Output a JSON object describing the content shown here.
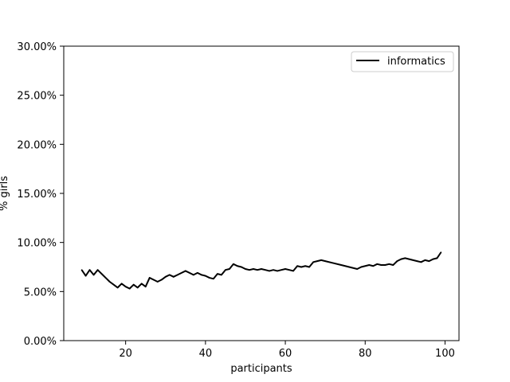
{
  "chart_data": {
    "type": "line",
    "xlabel": "participants",
    "ylabel": "% girls",
    "xlim": [
      4.5,
      103.5
    ],
    "ylim": [
      0,
      0.3
    ],
    "x_ticks": [
      20,
      40,
      60,
      80,
      100
    ],
    "x_tick_labels": [
      "20",
      "40",
      "60",
      "80",
      "100"
    ],
    "y_ticks": [
      0,
      0.05,
      0.1,
      0.15,
      0.2,
      0.25,
      0.3
    ],
    "y_tick_labels": [
      "0.00%",
      "5.00%",
      "10.00%",
      "15.00%",
      "20.00%",
      "25.00%",
      "30.00%"
    ],
    "grid": false,
    "legend_position": "top-right",
    "series": [
      {
        "name": "informatics",
        "color": "#000000",
        "x": [
          9,
          10,
          11,
          12,
          13,
          14,
          15,
          16,
          17,
          18,
          19,
          20,
          21,
          22,
          23,
          24,
          25,
          26,
          27,
          28,
          29,
          30,
          31,
          32,
          33,
          34,
          35,
          36,
          37,
          38,
          39,
          40,
          41,
          42,
          43,
          44,
          45,
          46,
          47,
          48,
          49,
          50,
          51,
          52,
          53,
          54,
          55,
          56,
          57,
          58,
          59,
          60,
          61,
          62,
          63,
          64,
          65,
          66,
          67,
          68,
          69,
          70,
          72,
          74,
          76,
          78,
          79,
          80,
          81,
          82,
          83,
          84,
          85,
          86,
          87,
          88,
          89,
          90,
          91,
          92,
          93,
          94,
          95,
          96,
          97,
          98,
          99
        ],
        "values": [
          0.072,
          0.066,
          0.072,
          0.067,
          0.072,
          0.068,
          0.064,
          0.06,
          0.057,
          0.054,
          0.058,
          0.055,
          0.053,
          0.057,
          0.054,
          0.058,
          0.055,
          0.064,
          0.062,
          0.06,
          0.062,
          0.065,
          0.067,
          0.065,
          0.067,
          0.069,
          0.071,
          0.069,
          0.067,
          0.069,
          0.067,
          0.066,
          0.064,
          0.063,
          0.068,
          0.067,
          0.072,
          0.073,
          0.078,
          0.076,
          0.075,
          0.073,
          0.072,
          0.073,
          0.072,
          0.073,
          0.072,
          0.071,
          0.072,
          0.071,
          0.072,
          0.073,
          0.072,
          0.071,
          0.076,
          0.075,
          0.076,
          0.075,
          0.08,
          0.081,
          0.082,
          0.081,
          0.079,
          0.077,
          0.075,
          0.073,
          0.075,
          0.076,
          0.077,
          0.076,
          0.078,
          0.077,
          0.077,
          0.078,
          0.077,
          0.081,
          0.083,
          0.084,
          0.083,
          0.082,
          0.081,
          0.08,
          0.082,
          0.081,
          0.083,
          0.084,
          0.09
        ]
      }
    ]
  }
}
